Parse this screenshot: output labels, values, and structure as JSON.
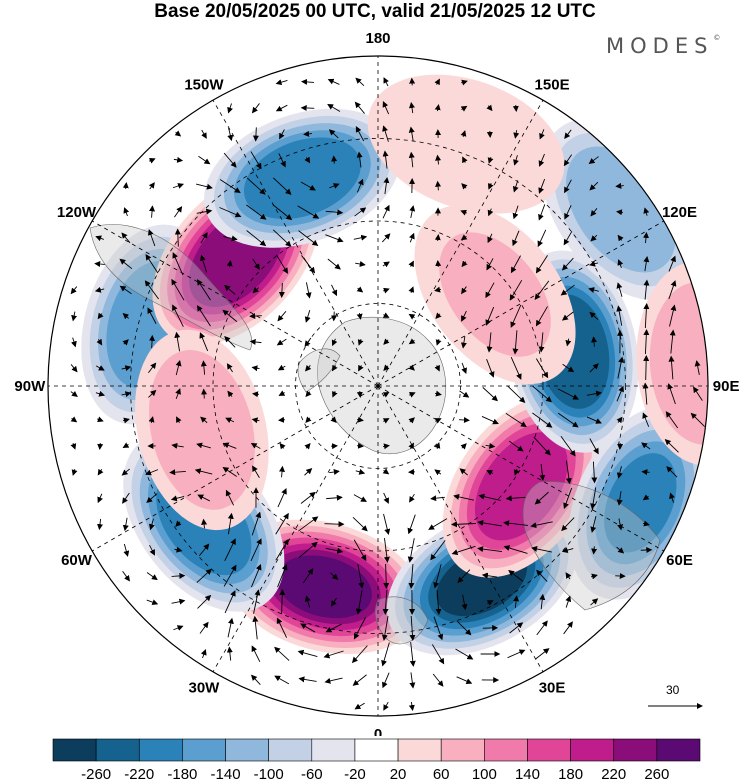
{
  "title": "Base 20/05/2025 00 UTC, valid 21/05/2025 12 UTC",
  "brand": "MODES",
  "brand_mark": "©",
  "longitude_labels": [
    "0",
    "30E",
    "60E",
    "90E",
    "120E",
    "150E",
    "180",
    "150W",
    "120W",
    "90W",
    "60W",
    "30W"
  ],
  "reference_vector": {
    "value": "30"
  },
  "colorbar": {
    "ticks": [
      "-260",
      "-220",
      "-180",
      "-140",
      "-100",
      "-60",
      "-20",
      "20",
      "60",
      "100",
      "140",
      "180",
      "220",
      "260"
    ],
    "colors": [
      "#0c3d5c",
      "#15628f",
      "#2a82b9",
      "#5a9fcf",
      "#90b8dc",
      "#c3d1e6",
      "#e4e4ef",
      "#ffffff",
      "#fbd9d8",
      "#f8b0c0",
      "#f07aaa",
      "#e04598",
      "#bf1c8c",
      "#8a0d7a",
      "#5b0a73"
    ]
  },
  "field_centers": [
    {
      "lon": -15,
      "r": 0.63,
      "value": 260
    },
    {
      "lon": 28,
      "r": 0.67,
      "value": -260
    },
    {
      "lon": -52,
      "r": 0.67,
      "value": -190
    },
    {
      "lon": 55,
      "r": 0.53,
      "value": 190
    },
    {
      "lon": 66,
      "r": 0.87,
      "value": -180
    },
    {
      "lon": 100,
      "r": 0.6,
      "value": -250
    },
    {
      "lon": -105,
      "r": 0.72,
      "value": -150
    },
    {
      "lon": -132,
      "r": 0.58,
      "value": 240
    },
    {
      "lon": -160,
      "r": 0.67,
      "value": -190
    },
    {
      "lon": 126,
      "r": 0.91,
      "value": -110
    },
    {
      "lon": -76,
      "r": 0.55,
      "value": 90
    },
    {
      "lon": 94,
      "r": 0.98,
      "value": 90
    },
    {
      "lon": 128,
      "r": 0.45,
      "value": 60
    },
    {
      "lon": 160,
      "r": 0.78,
      "value": 50
    }
  ]
}
